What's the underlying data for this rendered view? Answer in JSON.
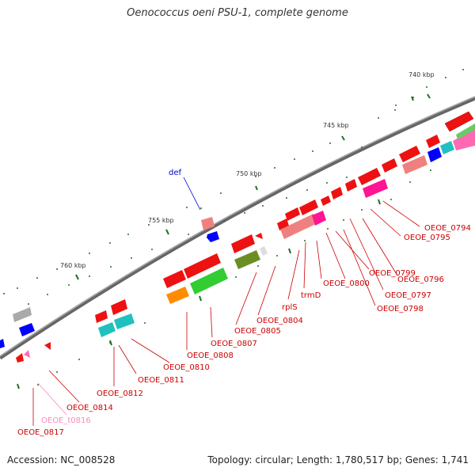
{
  "header": {
    "title": "Oenococcus oeni PSU-1, complete genome"
  },
  "footer": {
    "accession": "Accession: NC_008528",
    "topology": "Topology: circular; Length: 1,780,517 bp; Genes: 1,741"
  },
  "colors": {
    "backbone": "#7a7a7a",
    "gene_default": "#ff0000",
    "gene_light": "#f08080",
    "gene_magenta": "#ff1493",
    "gene_pink": "#ff69b4",
    "gene_blue": "#0000ff",
    "gene_cyan": "#20c0c0",
    "gene_green": "#33cc33",
    "gene_olive": "#6b8e23",
    "gene_orange": "#ff8c00",
    "gene_gray": "#aaaaaa",
    "tick": "#207020",
    "label_red": "#cc0000",
    "label_blue": "#0000cc",
    "label_pink": "#ff88bb"
  },
  "scale": {
    "tick_labels": [
      "740 kbp",
      "745 kbp",
      "750 kbp",
      "755 kbp",
      "760 kbp"
    ]
  },
  "features": [
    {
      "name": "def",
      "color": "blue"
    },
    {
      "name": "OEOE_0794",
      "color": "red"
    },
    {
      "name": "OEOE_0795",
      "color": "red"
    },
    {
      "name": "OEOE_0796",
      "color": "red"
    },
    {
      "name": "OEOE_0797",
      "color": "red"
    },
    {
      "name": "OEOE_0798",
      "color": "red"
    },
    {
      "name": "OEOE_0799",
      "color": "red"
    },
    {
      "name": "OEOE_0800",
      "color": "red"
    },
    {
      "name": "trmD",
      "color": "red"
    },
    {
      "name": "rplS",
      "color": "red"
    },
    {
      "name": "OEOE_0804",
      "color": "red"
    },
    {
      "name": "OEOE_0805",
      "color": "red"
    },
    {
      "name": "OEOE_0807",
      "color": "red"
    },
    {
      "name": "OEOE_0808",
      "color": "red"
    },
    {
      "name": "OEOE_0810",
      "color": "red"
    },
    {
      "name": "OEOE_0811",
      "color": "red"
    },
    {
      "name": "OEOE_0812",
      "color": "red"
    },
    {
      "name": "OEOE_0814",
      "color": "red"
    },
    {
      "name": "OEOE_t0816",
      "color": "pink"
    },
    {
      "name": "OEOE_0817",
      "color": "red"
    }
  ]
}
